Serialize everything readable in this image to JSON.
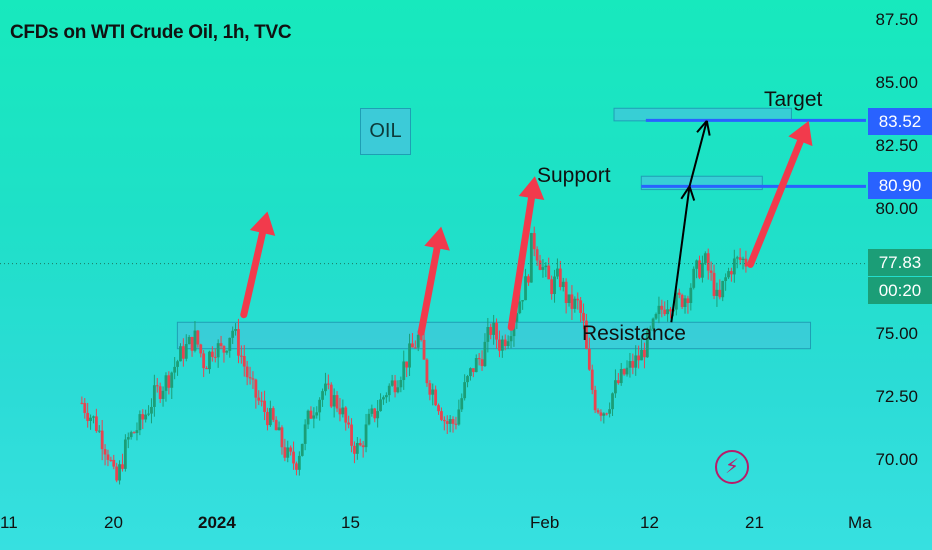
{
  "header": {
    "title": "CFDs on WTI Crude Oil, 1h, TVC"
  },
  "colors": {
    "up": "#1b9e77",
    "down": "#e8434f",
    "arrow": "#f23a4c",
    "zone_fill": "#3ccbd8",
    "zone_border": "#1e9fb4",
    "level_line": "#2962ff",
    "price_tag": "#2962ff",
    "last_price_tag": "#1b9e77"
  },
  "chart_data": {
    "type": "candlestick",
    "title": "CFDs on WTI Crude Oil, 1h, TVC",
    "ylim": [
      68.6,
      88.3
    ],
    "y_ticks": [
      70.0,
      72.5,
      75.0,
      80.0,
      82.5,
      85.0,
      87.5
    ],
    "y_tick_labels": [
      "70.00",
      "72.50",
      "75.00",
      "80.00",
      "82.50",
      "85.00",
      "87.50"
    ],
    "x_tick_labels": [
      "11",
      "20",
      "2024",
      "15",
      "Feb",
      "12",
      "21",
      "Ma"
    ],
    "x_tick_days": [
      11,
      20,
      32,
      46,
      63,
      74,
      83,
      94
    ],
    "x_tick_bold": [
      "2024"
    ],
    "price_path": [
      [
        8.5,
        72.3
      ],
      [
        10.0,
        71.5
      ],
      [
        11.5,
        70.2
      ],
      [
        12.2,
        69.0
      ],
      [
        13.5,
        70.8
      ],
      [
        15.0,
        71.5
      ],
      [
        16.5,
        72.6
      ],
      [
        18.0,
        73.3
      ],
      [
        19.5,
        74.3
      ],
      [
        21.0,
        74.9
      ],
      [
        22.0,
        73.8
      ],
      [
        23.0,
        74.6
      ],
      [
        24.0,
        74.3
      ],
      [
        25.0,
        75.3
      ],
      [
        26.0,
        74.2
      ],
      [
        27.0,
        73.0
      ],
      [
        28.0,
        72.3
      ],
      [
        29.5,
        71.5
      ],
      [
        31.0,
        70.2
      ],
      [
        32.0,
        69.9
      ],
      [
        33.5,
        71.8
      ],
      [
        35.0,
        72.8
      ],
      [
        36.0,
        72.5
      ],
      [
        37.0,
        72.1
      ],
      [
        38.0,
        70.8
      ],
      [
        39.0,
        70.4
      ],
      [
        40.0,
        71.5
      ],
      [
        41.0,
        72.1
      ],
      [
        42.0,
        72.8
      ],
      [
        43.0,
        73.2
      ],
      [
        44.5,
        74.2
      ],
      [
        45.5,
        74.9
      ],
      [
        46.5,
        73.2
      ],
      [
        47.5,
        72.5
      ],
      [
        48.5,
        71.5
      ],
      [
        49.5,
        71.5
      ],
      [
        50.5,
        72.8
      ],
      [
        51.5,
        73.7
      ],
      [
        52.5,
        74.2
      ],
      [
        53.5,
        75.3
      ],
      [
        54.5,
        74.6
      ],
      [
        55.5,
        75.2
      ],
      [
        56.5,
        76.3
      ],
      [
        57.5,
        77.2
      ],
      [
        58.0,
        78.9
      ],
      [
        59.0,
        77.8
      ],
      [
        60.0,
        76.9
      ],
      [
        61.0,
        77.3
      ],
      [
        62.0,
        76.2
      ],
      [
        63.0,
        76.2
      ],
      [
        63.6,
        75.5
      ],
      [
        64.2,
        73.5
      ],
      [
        65.0,
        72.2
      ],
      [
        66.0,
        72.0
      ],
      [
        67.0,
        72.8
      ],
      [
        68.0,
        73.4
      ],
      [
        69.0,
        73.8
      ],
      [
        70.0,
        74.2
      ],
      [
        71.0,
        75.0
      ],
      [
        72.0,
        75.9
      ],
      [
        73.0,
        76.4
      ],
      [
        74.0,
        76.3
      ],
      [
        75.0,
        76.6
      ],
      [
        76.0,
        77.5
      ],
      [
        77.0,
        77.9
      ],
      [
        78.0,
        76.9
      ],
      [
        78.5,
        76.1
      ],
      [
        79.0,
        77.0
      ],
      [
        80.0,
        77.8
      ],
      [
        81.0,
        78.0
      ],
      [
        81.5,
        77.9
      ]
    ],
    "last_price": "77.83",
    "countdown": "00:20",
    "zones": [
      {
        "name": "resistance-zone",
        "x0": 19.0,
        "x1": 88.6,
        "y0": 74.45,
        "y1": 75.5
      },
      {
        "name": "support-zone",
        "x0": 70.0,
        "x1": 83.3,
        "y0": 80.77,
        "y1": 81.3
      },
      {
        "name": "target-zone",
        "x0": 67.0,
        "x1": 86.5,
        "y0": 83.5,
        "y1": 84.0
      }
    ],
    "levels": [
      {
        "name": "target-level",
        "x0": 70.5,
        "value": 83.52,
        "label": "83.52"
      },
      {
        "name": "support-level",
        "x0": 70.0,
        "value": 80.9,
        "label": "80.90"
      }
    ],
    "annotations": [
      {
        "name": "oil-label",
        "text": "OIL"
      },
      {
        "name": "support-label",
        "text": "Support"
      },
      {
        "name": "resistance-label",
        "text": "Resistance"
      },
      {
        "name": "target-label",
        "text": "Target"
      }
    ],
    "red_arrows": [
      [
        26.3,
        75.8,
        28.9,
        79.9
      ],
      [
        45.8,
        75.1,
        48.0,
        79.3
      ],
      [
        55.7,
        75.3,
        58.3,
        81.3
      ],
      [
        82.0,
        77.8,
        88.4,
        83.5
      ]
    ],
    "black_arrows": [
      [
        73.3,
        75.5,
        75.3,
        80.9
      ],
      [
        75.3,
        80.9,
        77.2,
        83.5
      ]
    ]
  }
}
